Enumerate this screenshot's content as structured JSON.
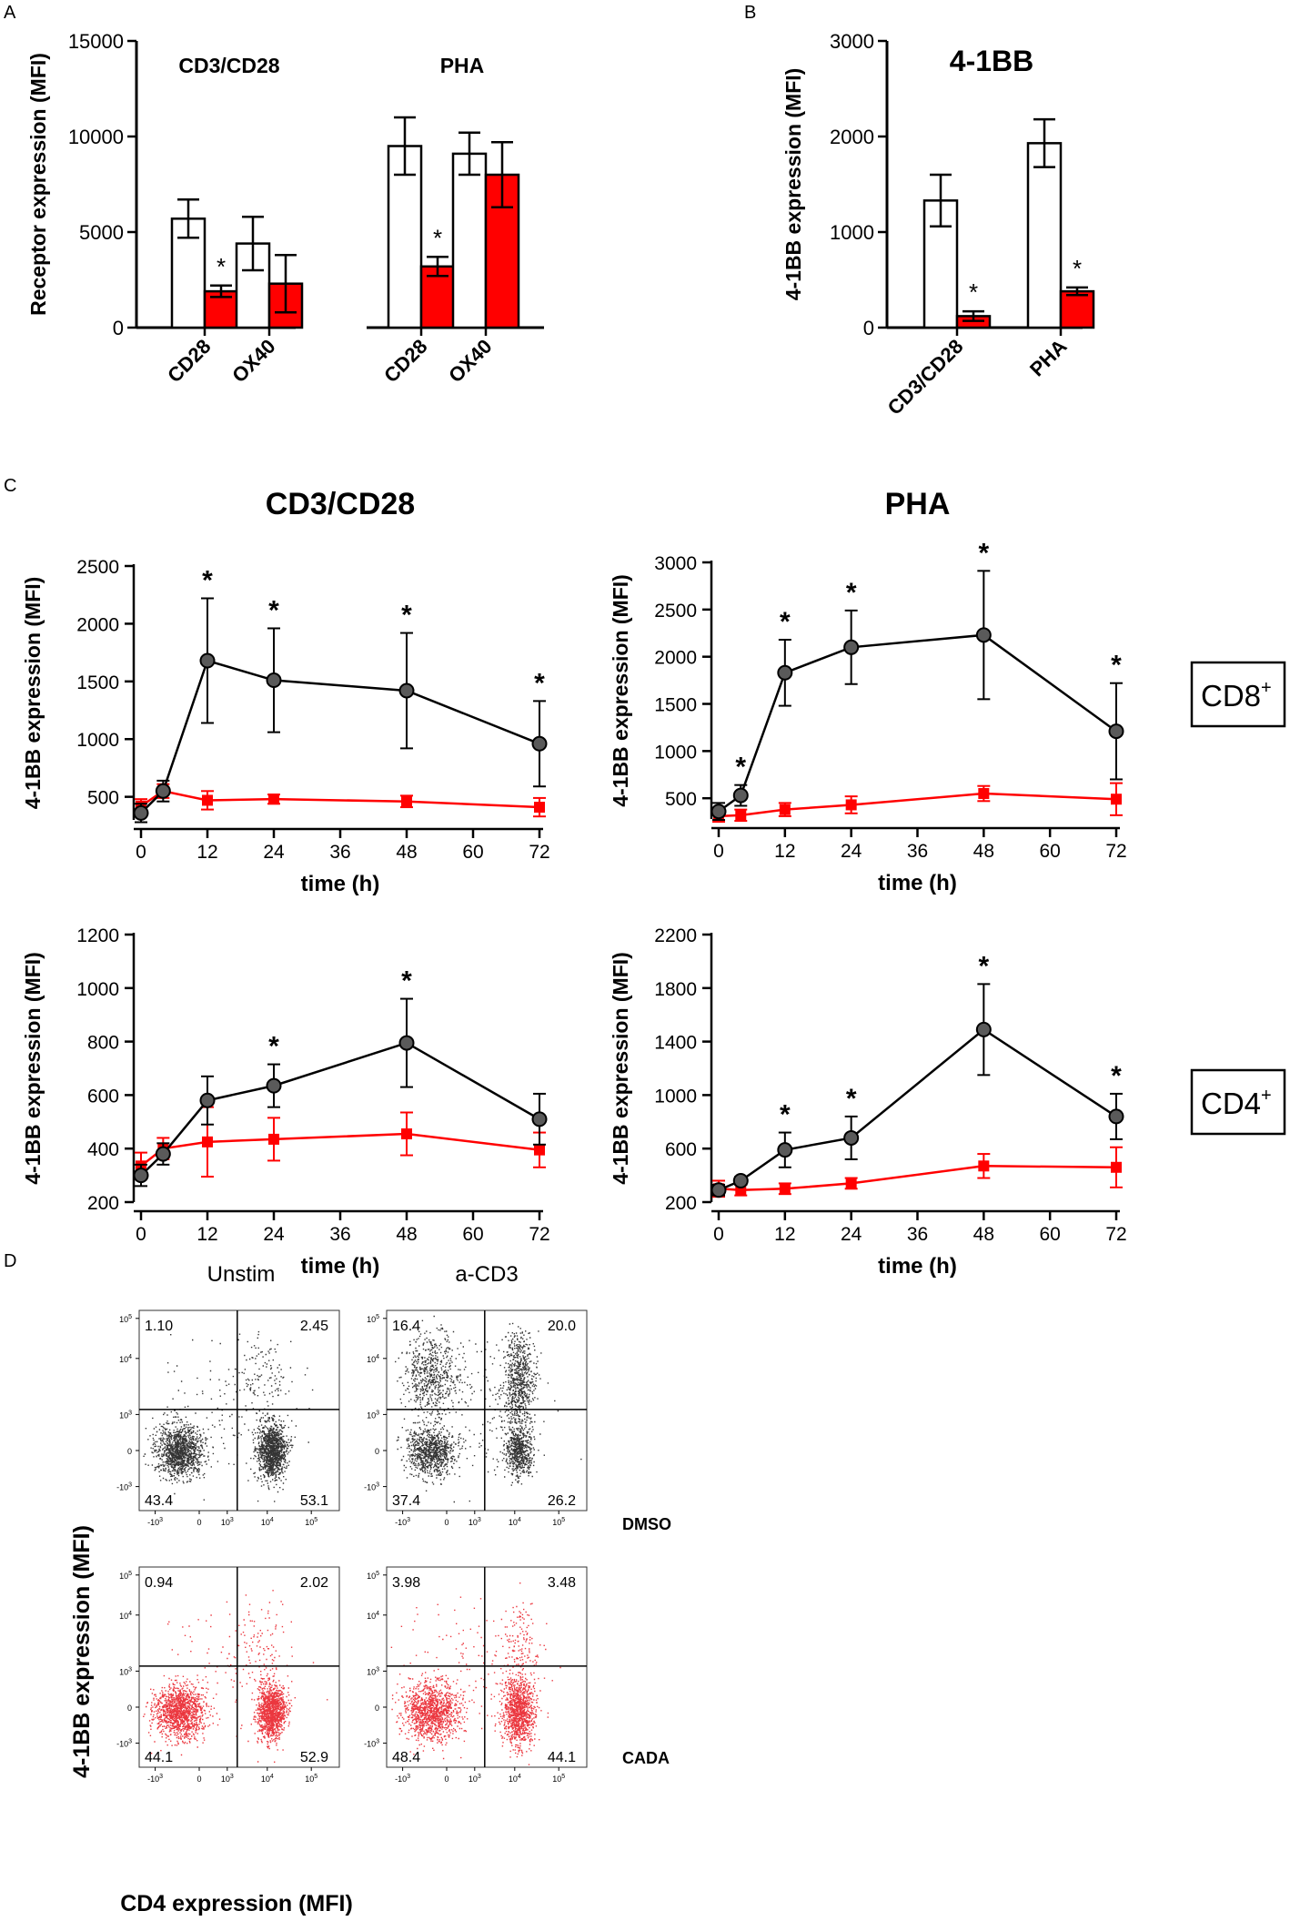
{
  "panel_labels": {
    "a": "A",
    "b": "B",
    "c": "C",
    "d": "D"
  },
  "colors": {
    "control": "#ffffff",
    "cada": "#ff0000",
    "black": "#000000",
    "grey_marker": "#5a5a5a",
    "dot_dmso": "#111111",
    "dot_cada": "#e8141d"
  },
  "chart_data": [
    {
      "id": "A",
      "type": "bar",
      "title": "",
      "xlabel": "",
      "ylabel": "Receptor expression (MFI)",
      "ylim": [
        0,
        15000
      ],
      "yticks": [
        0,
        5000,
        10000,
        15000
      ],
      "groups": [
        {
          "name": "CD3/CD28",
          "categories": [
            "CD28",
            "OX40"
          ]
        },
        {
          "name": "PHA",
          "categories": [
            "CD28",
            "OX40"
          ]
        }
      ],
      "categories": [
        "CD28",
        "OX40",
        "CD28",
        "OX40"
      ],
      "series": [
        {
          "name": "DMSO",
          "color": "#ffffff",
          "values": [
            5700,
            4400,
            9500,
            9100
          ],
          "errors": [
            1000,
            1400,
            1500,
            1100
          ]
        },
        {
          "name": "CADA",
          "color": "#ff0000",
          "values": [
            1900,
            2300,
            3200,
            8000
          ],
          "errors": [
            300,
            1500,
            500,
            1700
          ]
        }
      ],
      "significance": [
        "*",
        "",
        "*",
        ""
      ]
    },
    {
      "id": "B",
      "type": "bar",
      "title": "4-1BB",
      "xlabel": "",
      "ylabel": "4-1BB expression (MFI)",
      "ylim": [
        0,
        3000
      ],
      "yticks": [
        0,
        1000,
        2000,
        3000
      ],
      "categories": [
        "CD3/CD28",
        "PHA"
      ],
      "series": [
        {
          "name": "DMSO",
          "color": "#ffffff",
          "values": [
            1330,
            1930
          ],
          "errors": [
            270,
            250
          ]
        },
        {
          "name": "CADA",
          "color": "#ff0000",
          "values": [
            120,
            380
          ],
          "errors": [
            50,
            40
          ]
        }
      ],
      "significance": [
        "*",
        "*"
      ]
    },
    {
      "id": "C-CD8-CD3CD28",
      "type": "line",
      "title": "CD3/CD28",
      "xlabel": "time (h)",
      "ylabel": "4-1BB expression (MFI)",
      "xlim": [
        0,
        72
      ],
      "xticks": [
        0,
        12,
        24,
        36,
        48,
        60,
        72
      ],
      "ylim": [
        300,
        2500
      ],
      "yticks": [
        500,
        1000,
        1500,
        2000,
        2500
      ],
      "x": [
        0,
        4,
        12,
        24,
        48,
        72
      ],
      "series": [
        {
          "name": "DMSO",
          "marker": "circle",
          "values": [
            360,
            550,
            1680,
            1510,
            1420,
            960
          ],
          "errors": [
            80,
            90,
            540,
            450,
            500,
            370
          ]
        },
        {
          "name": "CADA",
          "marker": "square",
          "values": [
            420,
            550,
            470,
            480,
            460,
            410
          ],
          "errors": [
            60,
            60,
            80,
            40,
            50,
            80
          ]
        }
      ],
      "significance": [
        "",
        "",
        "*",
        "*",
        "*",
        "*"
      ]
    },
    {
      "id": "C-CD8-PHA",
      "type": "line",
      "title": "PHA",
      "xlabel": "time (h)",
      "ylabel": "4-1BB expression (MFI)",
      "xlim": [
        0,
        72
      ],
      "xticks": [
        0,
        12,
        24,
        36,
        48,
        60,
        72
      ],
      "ylim": [
        280,
        3000
      ],
      "yticks": [
        500,
        1000,
        1500,
        2000,
        2500,
        3000
      ],
      "x": [
        0,
        4,
        12,
        24,
        48,
        72
      ],
      "series": [
        {
          "name": "DMSO",
          "marker": "circle",
          "values": [
            360,
            530,
            1830,
            2100,
            2230,
            1210
          ],
          "errors": [
            90,
            110,
            350,
            390,
            680,
            510
          ]
        },
        {
          "name": "CADA",
          "marker": "square",
          "values": [
            310,
            320,
            380,
            430,
            550,
            490
          ],
          "errors": [
            60,
            60,
            70,
            90,
            80,
            170
          ]
        }
      ],
      "significance": [
        "",
        "*",
        "*",
        "*",
        "*",
        "*"
      ]
    },
    {
      "id": "C-CD4-CD3CD28",
      "type": "line",
      "title": "",
      "xlabel": "time (h)",
      "ylabel": "4-1BB expression (MFI)",
      "xlim": [
        0,
        72
      ],
      "xticks": [
        0,
        12,
        24,
        36,
        48,
        60,
        72
      ],
      "ylim": [
        200,
        1200
      ],
      "yticks": [
        200,
        400,
        600,
        800,
        1000,
        1200
      ],
      "x": [
        0,
        4,
        12,
        24,
        48,
        72
      ],
      "series": [
        {
          "name": "DMSO",
          "marker": "circle",
          "values": [
            300,
            380,
            580,
            635,
            795,
            510
          ],
          "errors": [
            40,
            40,
            90,
            80,
            165,
            95
          ]
        },
        {
          "name": "CADA",
          "marker": "square",
          "values": [
            335,
            400,
            425,
            435,
            455,
            395
          ],
          "errors": [
            50,
            40,
            130,
            80,
            80,
            65
          ]
        }
      ],
      "significance": [
        "",
        "",
        "",
        "*",
        "*",
        ""
      ]
    },
    {
      "id": "C-CD4-PHA",
      "type": "line",
      "title": "",
      "xlabel": "time (h)",
      "ylabel": "4-1BB expression (MFI)",
      "xlim": [
        0,
        72
      ],
      "xticks": [
        0,
        12,
        24,
        36,
        48,
        60,
        72
      ],
      "ylim": [
        200,
        2200
      ],
      "yticks": [
        200,
        600,
        1000,
        1400,
        1800,
        2200
      ],
      "x": [
        0,
        4,
        12,
        24,
        48,
        72
      ],
      "series": [
        {
          "name": "DMSO",
          "marker": "circle",
          "values": [
            290,
            360,
            590,
            680,
            1490,
            840
          ],
          "errors": [
            40,
            30,
            130,
            160,
            340,
            170
          ]
        },
        {
          "name": "CADA",
          "marker": "square",
          "values": [
            300,
            290,
            300,
            340,
            470,
            460
          ],
          "errors": [
            60,
            40,
            40,
            40,
            90,
            150
          ]
        }
      ],
      "significance": [
        "",
        "",
        "*",
        "*",
        "*",
        "*"
      ]
    }
  ],
  "cell_labels": {
    "cd8": "CD8",
    "cd4": "CD4",
    "sup": "+"
  },
  "flow": {
    "columns": [
      "Unstim",
      "a-CD3"
    ],
    "rows": [
      "DMSO",
      "CADA"
    ],
    "xlabel": "CD4 expression (MFI)",
    "ylabel": "4-1BB expression (MFI)",
    "tick_labels": {
      "pos5": "10",
      "pos5_exp": "5",
      "pos4": "10",
      "pos4_exp": "4",
      "pos3": "10",
      "pos3_exp": "3",
      "zero": "0",
      "neg3": "-10",
      "neg3_exp": "3"
    },
    "quadrants": [
      {
        "row": "DMSO",
        "col": "Unstim",
        "ul": "1.10",
        "ur": "2.45",
        "ll": "43.4",
        "lr": "53.1"
      },
      {
        "row": "DMSO",
        "col": "a-CD3",
        "ul": "16.4",
        "ur": "20.0",
        "ll": "37.4",
        "lr": "26.2"
      },
      {
        "row": "CADA",
        "col": "Unstim",
        "ul": "0.94",
        "ur": "2.02",
        "ll": "44.1",
        "lr": "52.9"
      },
      {
        "row": "CADA",
        "col": "a-CD3",
        "ul": "3.98",
        "ur": "3.48",
        "ll": "48.4",
        "lr": "44.1"
      }
    ]
  }
}
